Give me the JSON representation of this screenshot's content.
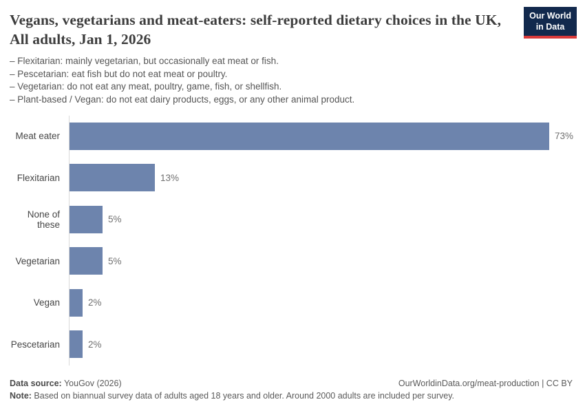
{
  "header": {
    "title": "Vegans, vegetarians and meat-eaters: self-reported dietary choices in the UK, All adults, Jan 1, 2026",
    "subtitle_lines": [
      "– Flexitarian: mainly vegetarian, but occasionally eat meat or fish.",
      "– Pescetarian: eat fish but do not eat meat or poultry.",
      "– Vegetarian: do not eat any meat, poultry, game, fish, or shellfish.",
      "– Plant-based / Vegan: do not eat dairy products, eggs, or any other animal product."
    ],
    "logo": {
      "line1": "Our World",
      "line2": "in Data",
      "bg_color": "#12294d",
      "accent_color": "#d93a3a"
    }
  },
  "chart_data": {
    "type": "bar",
    "orientation": "horizontal",
    "title": "Vegans, vegetarians and meat-eaters: self-reported dietary choices in the UK, All adults, Jan 1, 2026",
    "categories": [
      "Meat eater",
      "Flexitarian",
      "None of these",
      "Vegetarian",
      "Vegan",
      "Pescetarian"
    ],
    "values": [
      73,
      13,
      5,
      5,
      2,
      2
    ],
    "value_labels": [
      "73%",
      "13%",
      "5%",
      "5%",
      "2%",
      "2%"
    ],
    "unit": "%",
    "bar_color": "#6d84ad",
    "axis_color": "#d9d9d9",
    "grid": false,
    "legend": "none",
    "xlim": [
      0,
      77
    ]
  },
  "footer": {
    "datasource_label": "Data source:",
    "datasource_value": " YouGov (2026)",
    "attribution": "OurWorldinData.org/meat-production | CC BY",
    "note_label": "Note:",
    "note_value": " Based on biannual survey data of adults aged 18 years and older. Around 2000 adults are included per survey."
  }
}
